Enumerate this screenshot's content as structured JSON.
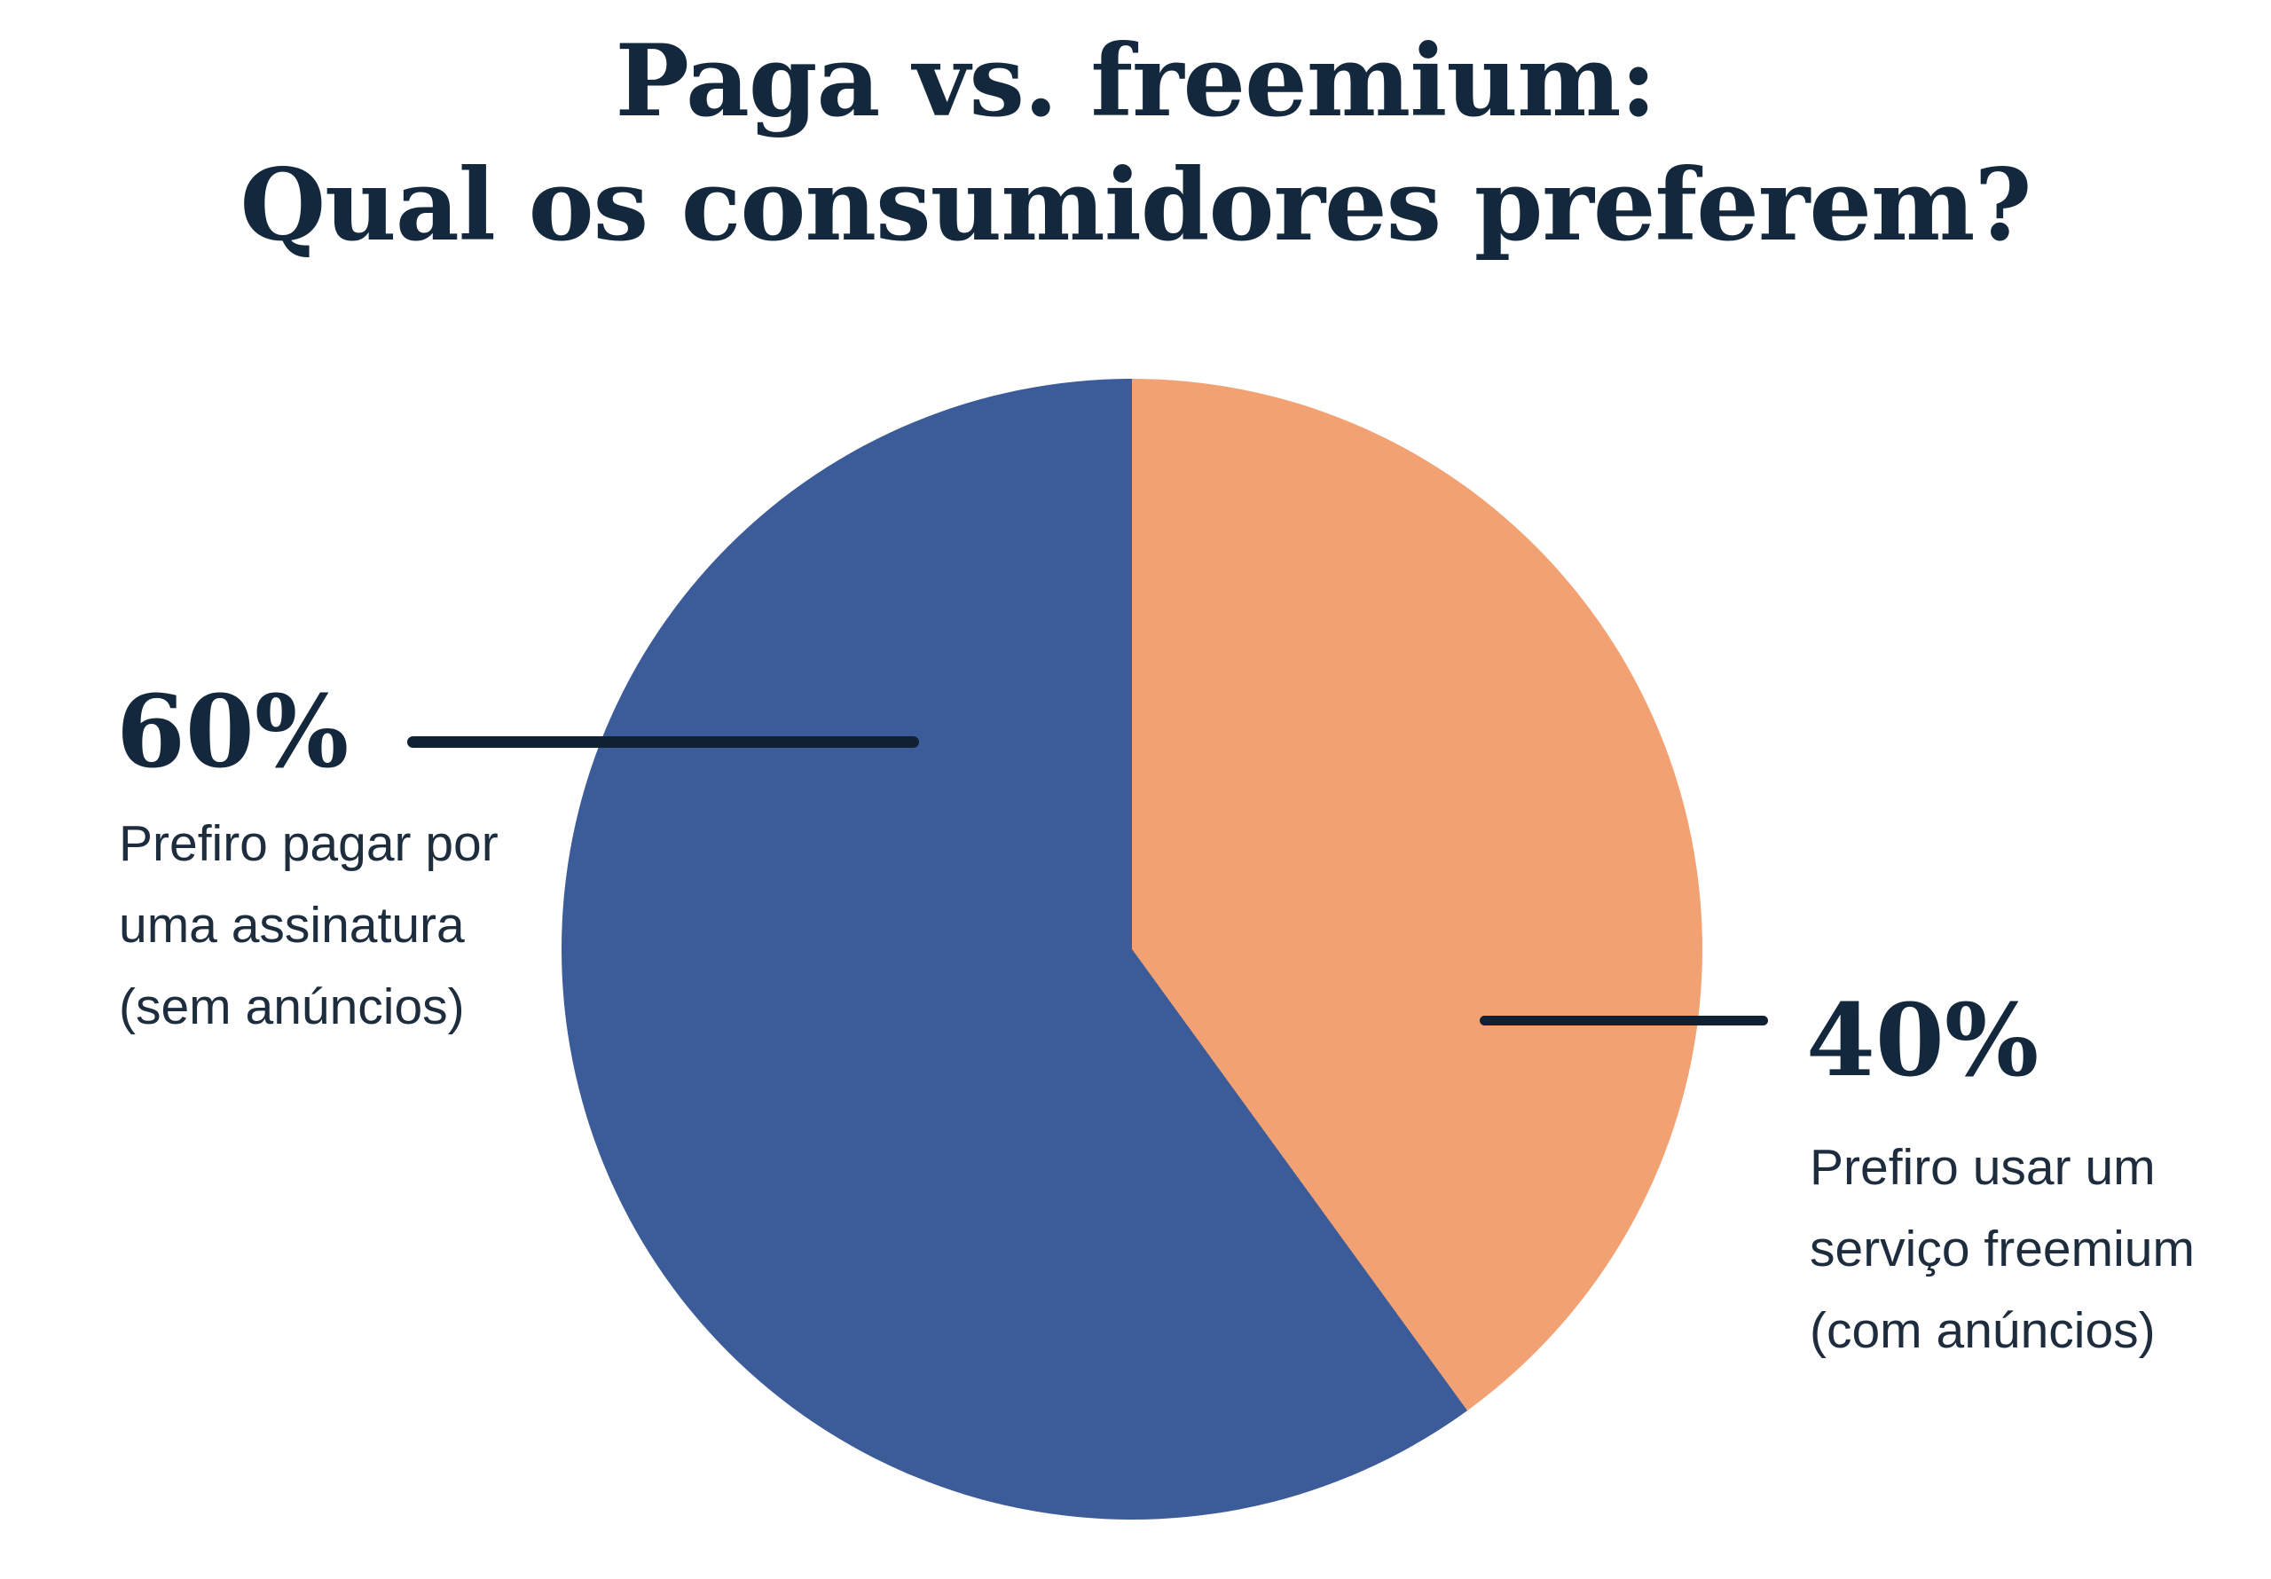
{
  "page": {
    "background": "#ffffff"
  },
  "title": {
    "line1": "Paga vs. freemium:",
    "line2": "Qual os consumidores preferem?"
  },
  "colors": {
    "background": "#ffffff",
    "navy_dark": "#13283c",
    "navy_text": "#1e2d3d",
    "navy_line": "#0f2133",
    "slice_paid_blue": "#3b5b99",
    "slice_freemium_orange": "#f2a173"
  },
  "chart_data": {
    "type": "pie",
    "title": "Paga vs. freemium: Qual os consumidores preferem?",
    "direction": "clockwise",
    "start_angle_deg": 0,
    "legend_position": "side-callouts",
    "slices": [
      {
        "label": "Prefiro usar um serviço freemium (com anúncios)",
        "value": 40,
        "percent_label": "40%",
        "color": "#f2a173"
      },
      {
        "label": "Prefiro pagar por uma assinatura (sem anúncios)",
        "value": 60,
        "percent_label": "60%",
        "color": "#3b5b99"
      }
    ]
  },
  "callouts": {
    "left": {
      "percent": "60%",
      "line1": "Prefiro pagar por",
      "line2": "uma assinatura",
      "line3": "(sem anúncios)"
    },
    "right": {
      "percent": "40%",
      "line1": "Prefiro usar um",
      "line2": "serviço freemium",
      "line3": "(com anúncios)"
    }
  }
}
